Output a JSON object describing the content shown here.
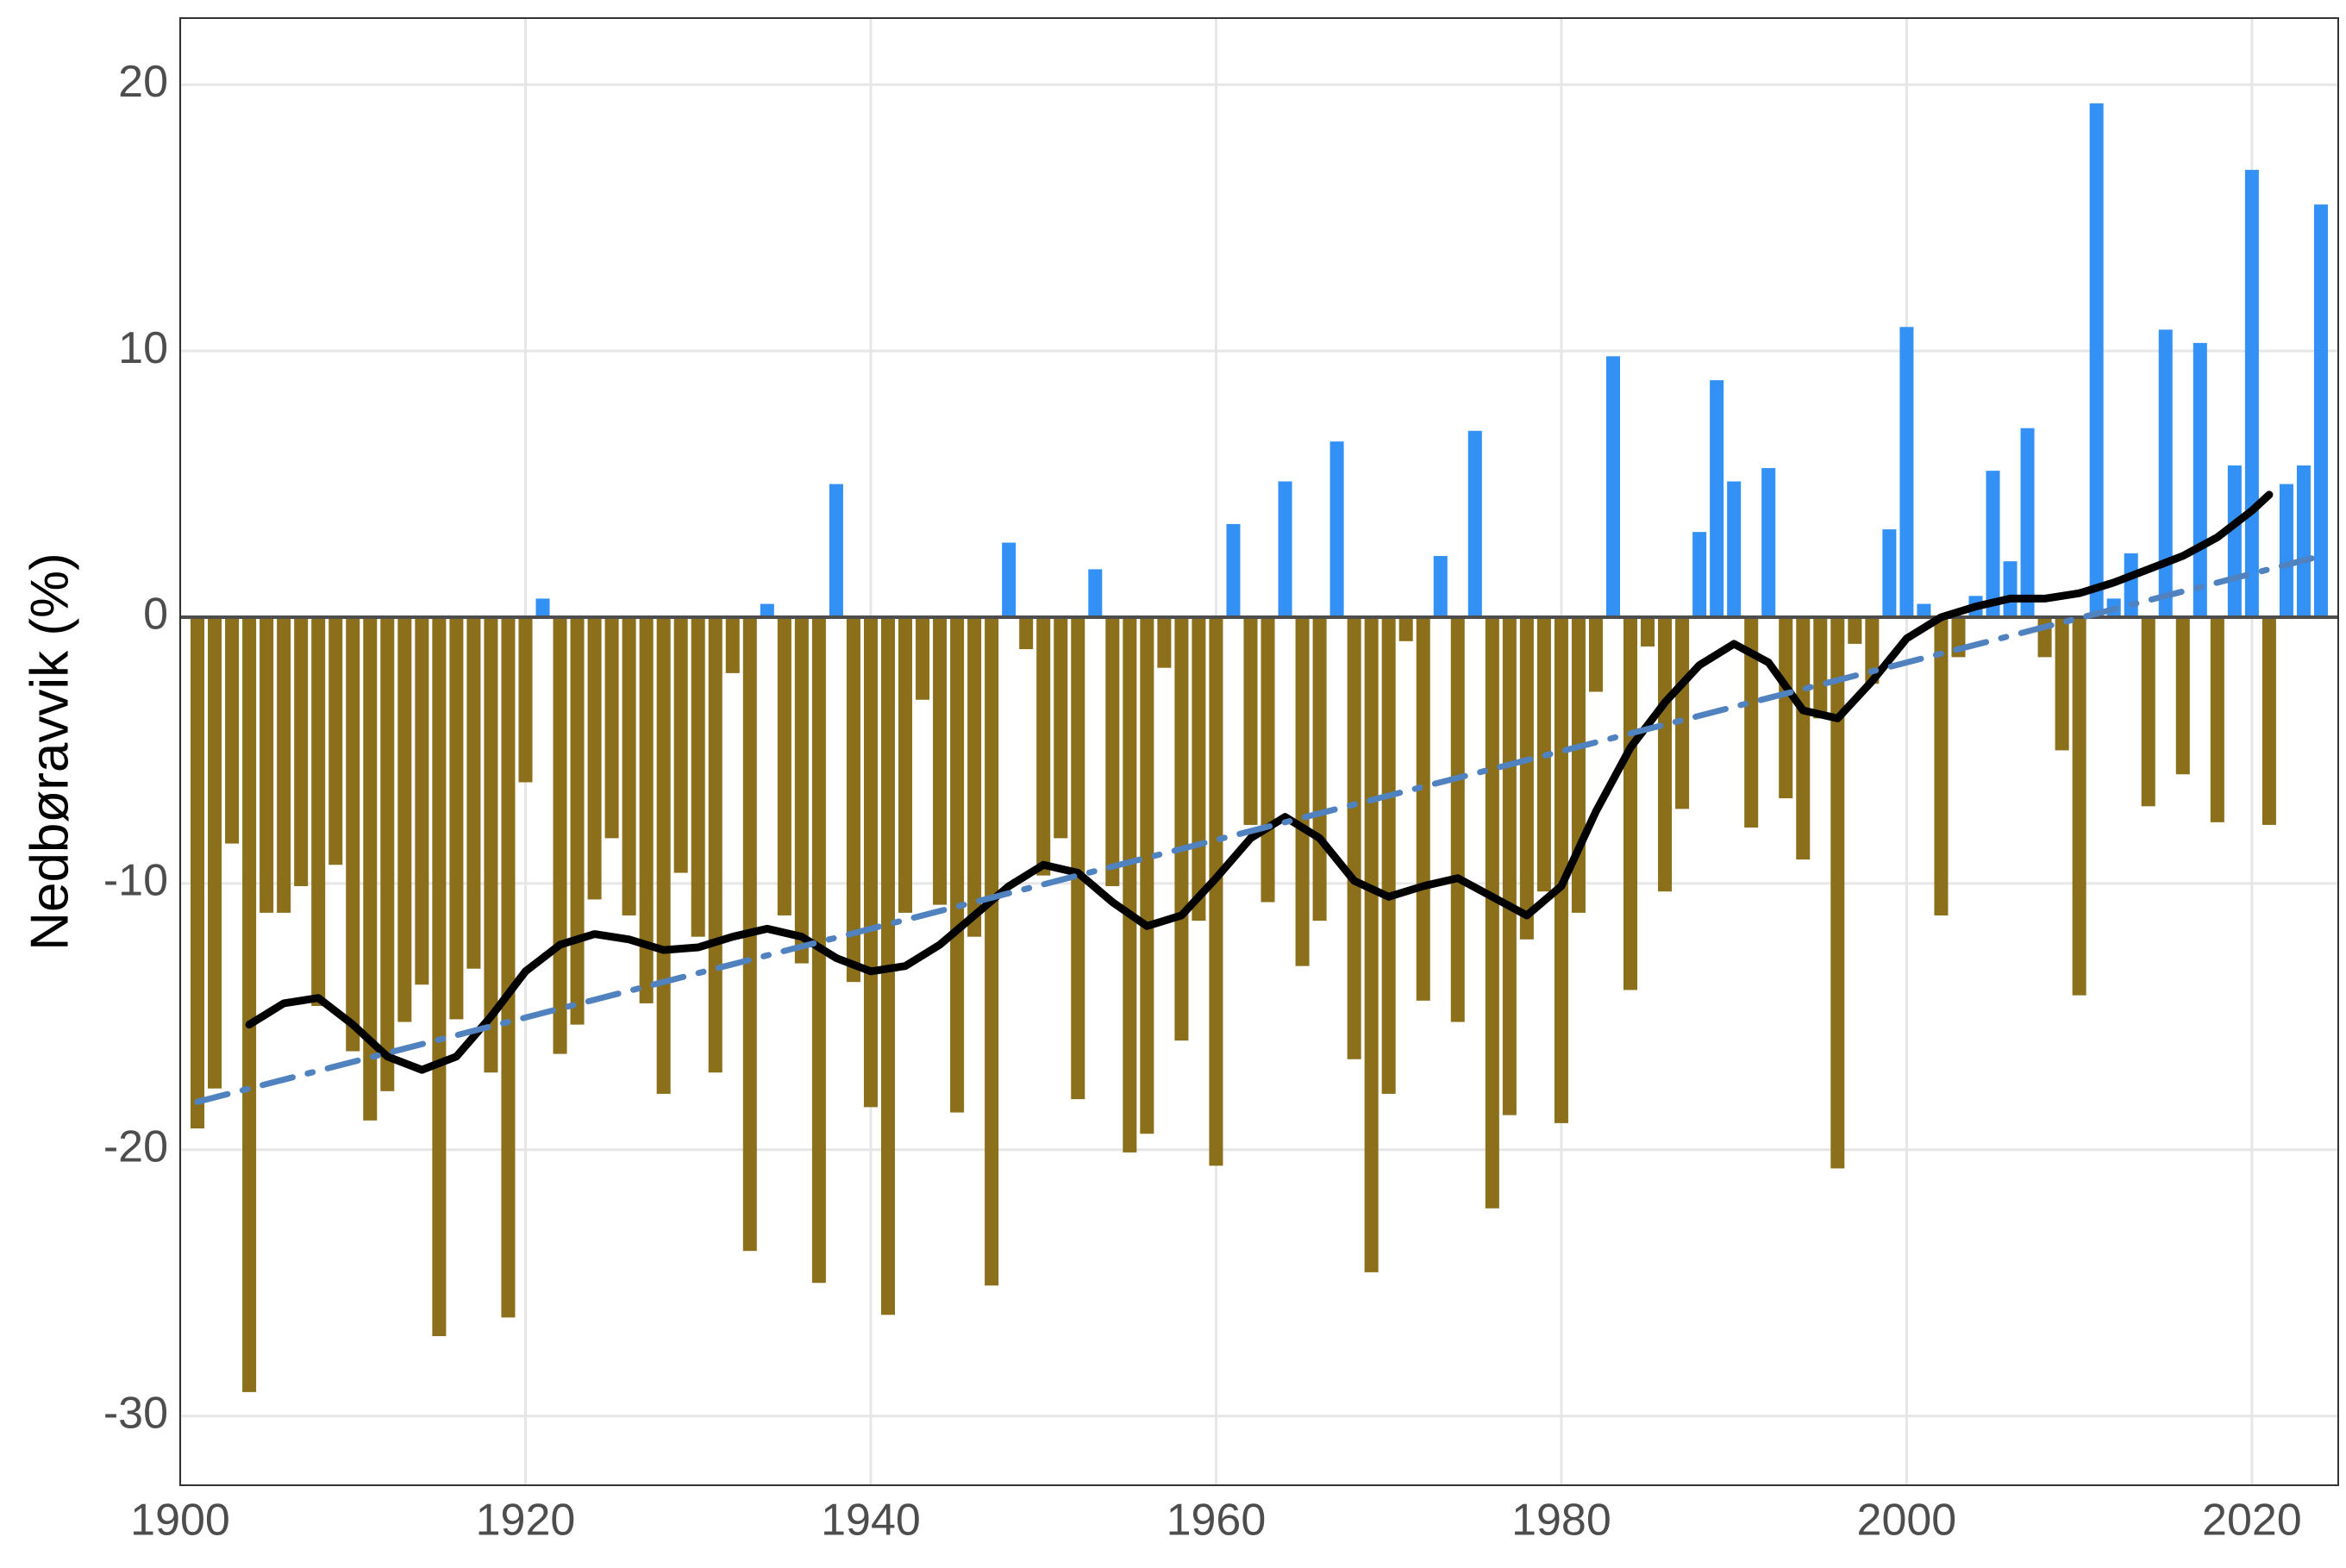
{
  "chart_data": {
    "type": "bar",
    "ylabel": "Nedbøravvik (%)",
    "x": [
      1901,
      1902,
      1903,
      1904,
      1905,
      1906,
      1907,
      1908,
      1909,
      1910,
      1911,
      1912,
      1913,
      1914,
      1915,
      1916,
      1917,
      1918,
      1919,
      1920,
      1921,
      1922,
      1923,
      1924,
      1925,
      1926,
      1927,
      1928,
      1929,
      1930,
      1931,
      1932,
      1933,
      1934,
      1935,
      1936,
      1937,
      1938,
      1939,
      1940,
      1941,
      1942,
      1943,
      1944,
      1945,
      1946,
      1947,
      1948,
      1949,
      1950,
      1951,
      1952,
      1953,
      1954,
      1955,
      1956,
      1957,
      1958,
      1959,
      1960,
      1961,
      1962,
      1963,
      1964,
      1965,
      1966,
      1967,
      1968,
      1969,
      1970,
      1971,
      1972,
      1973,
      1974,
      1975,
      1976,
      1977,
      1978,
      1979,
      1980,
      1981,
      1982,
      1983,
      1984,
      1985,
      1986,
      1987,
      1988,
      1989,
      1990,
      1991,
      1992,
      1993,
      1994,
      1995,
      1996,
      1997,
      1998,
      1999,
      2000,
      2001,
      2002,
      2003,
      2004,
      2005,
      2006,
      2007,
      2008,
      2009,
      2010,
      2011,
      2012,
      2013,
      2014,
      2015,
      2016,
      2017,
      2018,
      2019,
      2020,
      2021,
      2022,
      2023,
      2024
    ],
    "values": [
      -19.2,
      -17.7,
      -8.5,
      -29.1,
      -11.1,
      -11.1,
      -10.1,
      -14.6,
      -9.3,
      -16.3,
      -18.9,
      -17.8,
      -15.2,
      -13.8,
      -27,
      -15.1,
      -13.2,
      -17.1,
      -26.3,
      -6.2,
      0.7,
      -16.4,
      -15.3,
      -10.6,
      -8.3,
      -11.2,
      -14.5,
      -17.9,
      -9.6,
      -12,
      -17.1,
      -2.1,
      -23.8,
      0.5,
      -11.2,
      -13,
      -25,
      5,
      -13.7,
      -18.4,
      -26.2,
      -11.1,
      -3.1,
      -10.8,
      -18.6,
      -12,
      -25.1,
      2.8,
      -1.2,
      -9.7,
      -8.3,
      -18.1,
      1.8,
      -10.1,
      -20.1,
      -19.4,
      -1.9,
      -15.9,
      -11.4,
      -20.6,
      3.5,
      -7.8,
      -10.7,
      5.1,
      -13.1,
      -11.4,
      6.6,
      -16.6,
      -24.6,
      -17.9,
      -0.9,
      -14.4,
      2.3,
      -15.2,
      7,
      -22.2,
      -18.7,
      -12.1,
      -10.3,
      -19,
      -11.1,
      -2.8,
      9.8,
      -14,
      -1.1,
      -10.3,
      -7.2,
      3.2,
      8.9,
      5.1,
      -7.9,
      5.6,
      -6.8,
      -9.1,
      -3.8,
      -20.7,
      -1,
      -2.5,
      3.3,
      10.9,
      0.5,
      -11.2,
      -1.5,
      0.8,
      5.5,
      2.1,
      7.1,
      -1.5,
      -5,
      -14.2,
      19.3,
      0.7,
      2.4,
      -7.1,
      10.8,
      -5.9,
      10.3,
      -7.7,
      5.7,
      16.8,
      -7.8,
      5,
      5.7,
      15.5
    ],
    "positive_color": "#3391f5",
    "negative_color": "#8b6f1b",
    "lines": [
      {
        "x": [
          1904,
          1906,
          1908,
          1910,
          1912,
          1914,
          1916,
          1918,
          1920,
          1922,
          1924,
          1926,
          1928,
          1930,
          1932,
          1934,
          1936,
          1938,
          1940,
          1942,
          1944,
          1946,
          1948,
          1950,
          1952,
          1954,
          1956,
          1958,
          1960,
          1962,
          1964,
          1966,
          1968,
          1970,
          1972,
          1974,
          1976,
          1978,
          1980,
          1982,
          1984,
          1986,
          1988,
          1990,
          1992,
          1994,
          1996,
          1998,
          2000,
          2002,
          2004,
          2006,
          2008,
          2010,
          2012,
          2014,
          2016,
          2018,
          2020,
          2021
        ],
        "values": [
          -15.3,
          -14.5,
          -14.3,
          -15.3,
          -16.5,
          -17,
          -16.5,
          -15,
          -13.3,
          -12.3,
          -11.9,
          -12.1,
          -12.5,
          -12.4,
          -12,
          -11.7,
          -12,
          -12.8,
          -13.3,
          -13.1,
          -12.3,
          -11.2,
          -10.1,
          -9.3,
          -9.6,
          -10.7,
          -11.6,
          -11.2,
          -9.8,
          -8.3,
          -7.5,
          -8.3,
          -9.9,
          -10.5,
          -10.1,
          -9.8,
          -10.5,
          -11.2,
          -10.1,
          -7.3,
          -4.9,
          -3.2,
          -1.8,
          -1,
          -1.7,
          -3.5,
          -3.8,
          -2.4,
          -0.8,
          0,
          0.4,
          0.7,
          0.7,
          0.9,
          1.3,
          1.8,
          2.3,
          3,
          4,
          4.6
        ],
        "color": "#000000",
        "style": "solid"
      },
      {
        "x": [
          1901,
          2024
        ],
        "values": [
          -18.2,
          2.3
        ],
        "color": "#5082c0",
        "style": "dashdot"
      }
    ],
    "xlim": [
      1900,
      2025
    ],
    "xticks": [
      1900,
      1920,
      1940,
      1960,
      1980,
      2000,
      2020
    ],
    "ylim": [
      -32.6,
      22.5
    ],
    "yticks": [
      -30,
      -20,
      -10,
      0,
      10,
      20
    ],
    "grid": true
  }
}
